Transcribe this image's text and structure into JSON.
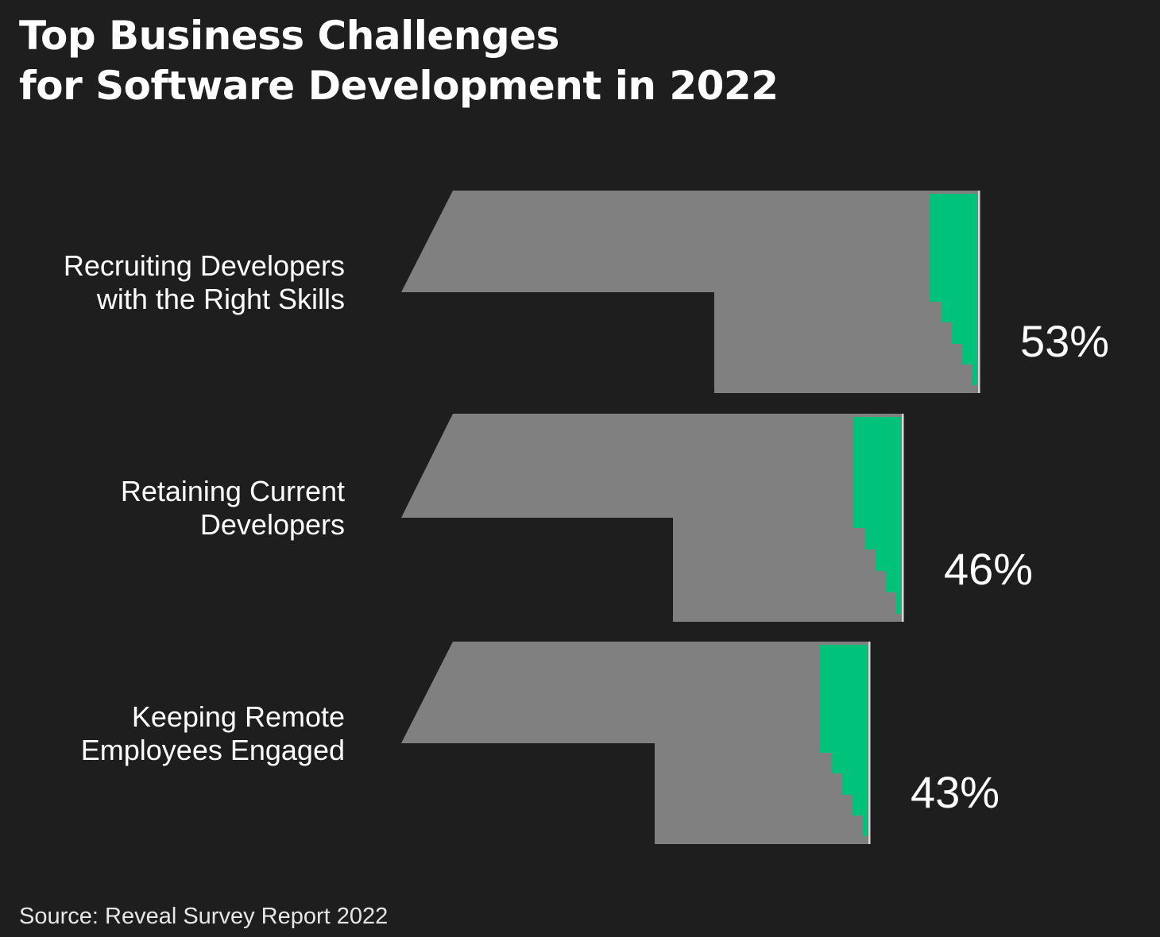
{
  "title_lines": [
    "Top Business Challenges",
    "for Software Development in 2022"
  ],
  "source": "Source: Reveal Survey Report 2022",
  "colors": {
    "background": "#1e1e1e",
    "bar": "#808080",
    "accent": "#00c27a",
    "text": "#ffffff"
  },
  "chart_data": {
    "type": "bar",
    "orientation": "horizontal",
    "title": "Top Business Challenges for Software Development in 2022",
    "categories": [
      [
        "Recruiting Developers",
        "with the Right Skills"
      ],
      [
        "Retaining Current",
        "Developers"
      ],
      [
        "Keeping Remote",
        "Employees Engaged"
      ]
    ],
    "values": [
      53,
      46,
      43
    ],
    "value_labels": [
      "53%",
      "46%",
      "43%"
    ],
    "unit": "%",
    "grid": false,
    "legend": "none"
  }
}
